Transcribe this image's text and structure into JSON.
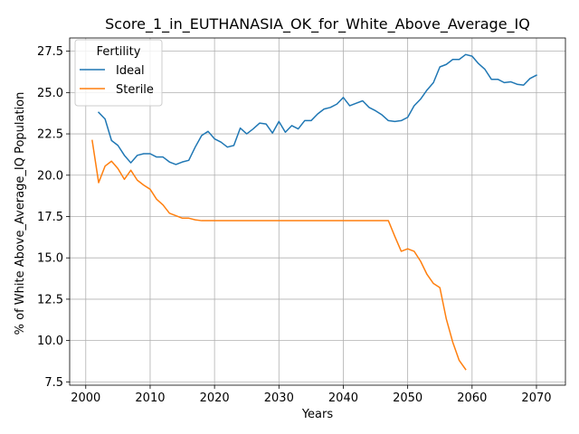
{
  "chart_data": {
    "type": "line",
    "title": "Score_1_in_EUTHANASIA_OK_for_White_Above_Average_IQ",
    "xlabel": "Years",
    "ylabel": "% of White Above_Average_IQ Population",
    "xlim": [
      1997.5,
      2074.5
    ],
    "ylim": [
      7.3,
      28.3
    ],
    "x_ticks": [
      2000,
      2010,
      2020,
      2030,
      2040,
      2050,
      2060,
      2070
    ],
    "y_ticks": [
      7.5,
      10.0,
      12.5,
      15.0,
      17.5,
      20.0,
      22.5,
      25.0,
      27.5
    ],
    "grid": true,
    "legend": {
      "title": "Fertility",
      "placement": "top-left"
    },
    "series": [
      {
        "name": "Ideal",
        "color": "#1f77b4",
        "x": [
          2002,
          2003,
          2004,
          2005,
          2006,
          2007,
          2008,
          2009,
          2010,
          2011,
          2012,
          2013,
          2014,
          2015,
          2016,
          2017,
          2018,
          2019,
          2020,
          2021,
          2022,
          2023,
          2024,
          2025,
          2026,
          2027,
          2028,
          2029,
          2030,
          2031,
          2032,
          2033,
          2034,
          2035,
          2036,
          2037,
          2038,
          2039,
          2040,
          2041,
          2042,
          2043,
          2044,
          2045,
          2046,
          2047,
          2048,
          2049,
          2050,
          2051,
          2052,
          2053,
          2054,
          2055,
          2056,
          2057,
          2058,
          2059,
          2060,
          2061,
          2062,
          2063,
          2064,
          2065,
          2066,
          2067,
          2068,
          2069,
          2070
        ],
        "y": [
          23.8,
          23.4,
          22.1,
          21.8,
          21.2,
          20.75,
          21.2,
          21.3,
          21.3,
          21.1,
          21.1,
          20.8,
          20.65,
          20.8,
          20.9,
          21.7,
          22.4,
          22.65,
          22.2,
          22.0,
          21.7,
          21.8,
          22.85,
          22.5,
          22.8,
          23.15,
          23.1,
          22.55,
          23.25,
          22.6,
          23.0,
          22.8,
          23.3,
          23.3,
          23.7,
          24.0,
          24.1,
          24.3,
          24.7,
          24.2,
          24.35,
          24.5,
          24.1,
          23.9,
          23.65,
          23.3,
          23.25,
          23.3,
          23.5,
          24.2,
          24.6,
          25.15,
          25.6,
          26.55,
          26.7,
          27.0,
          27.0,
          27.3,
          27.2,
          26.75,
          26.4,
          25.8,
          25.8,
          25.6,
          25.65,
          25.5,
          25.45,
          25.85,
          26.05
        ]
      },
      {
        "name": "Sterile",
        "color": "#ff7f0e",
        "x": [
          2001,
          2002,
          2003,
          2004,
          2005,
          2006,
          2007,
          2008,
          2009,
          2010,
          2011,
          2012,
          2013,
          2014,
          2015,
          2016,
          2017,
          2018,
          2019,
          2020,
          2021,
          2022,
          2023,
          2024,
          2025,
          2026,
          2027,
          2028,
          2029,
          2030,
          2031,
          2032,
          2033,
          2034,
          2035,
          2036,
          2037,
          2038,
          2039,
          2040,
          2041,
          2042,
          2043,
          2044,
          2045,
          2046,
          2047,
          2048,
          2049,
          2050,
          2051,
          2052,
          2053,
          2054,
          2055,
          2056,
          2057,
          2058,
          2059
        ],
        "y": [
          22.1,
          19.55,
          20.55,
          20.85,
          20.4,
          19.75,
          20.3,
          19.7,
          19.4,
          19.15,
          18.55,
          18.2,
          17.7,
          17.55,
          17.4,
          17.4,
          17.3,
          17.25,
          17.25,
          17.25,
          17.25,
          17.25,
          17.25,
          17.25,
          17.25,
          17.25,
          17.25,
          17.25,
          17.25,
          17.25,
          17.25,
          17.25,
          17.25,
          17.25,
          17.25,
          17.25,
          17.25,
          17.25,
          17.25,
          17.25,
          17.25,
          17.25,
          17.25,
          17.25,
          17.25,
          17.25,
          17.25,
          16.3,
          15.4,
          15.55,
          15.4,
          14.8,
          14.0,
          13.45,
          13.2,
          11.3,
          9.9,
          8.8,
          8.25
        ]
      }
    ]
  }
}
